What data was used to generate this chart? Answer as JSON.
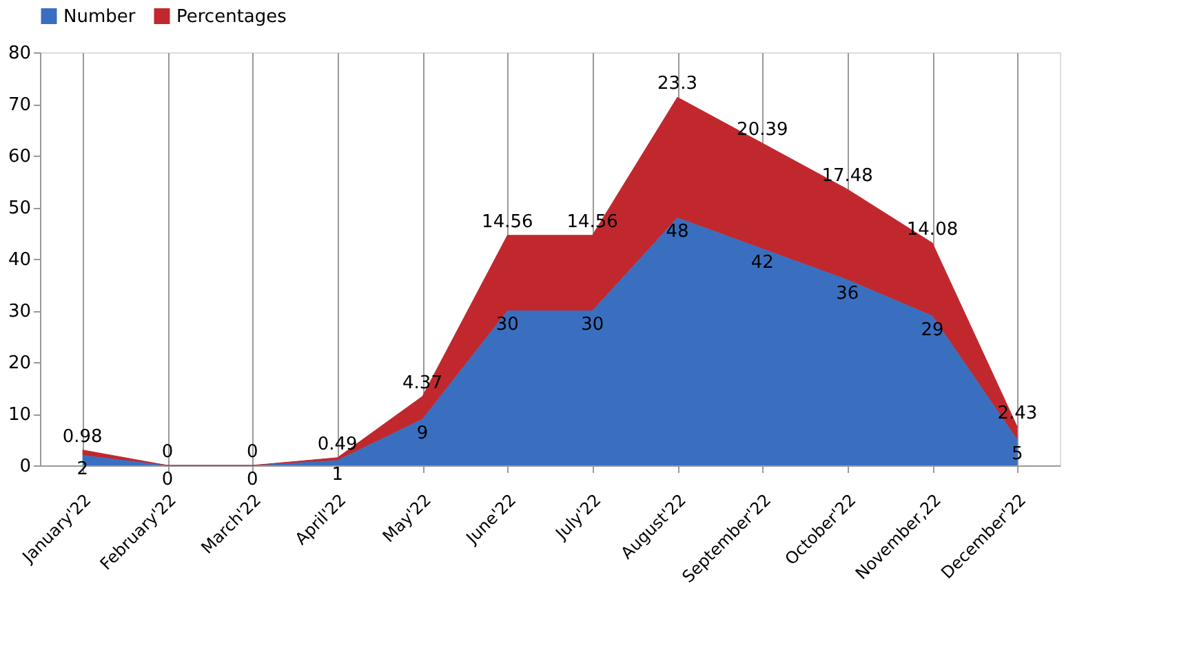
{
  "chart_data": {
    "type": "area",
    "stacked": true,
    "categories": [
      "January'22",
      "February'22",
      "March'22",
      "April'22",
      "May'22",
      "June'22",
      "July'22",
      "August'22",
      "September'22",
      "October'22",
      "November,22",
      "December'22"
    ],
    "series": [
      {
        "name": "Number",
        "color": "#3a6fc0",
        "values": [
          2,
          0,
          0,
          1,
          9,
          30,
          30,
          48,
          42,
          36,
          29,
          5
        ]
      },
      {
        "name": "Percentages",
        "color": "#c0282d",
        "values": [
          0.98,
          0,
          0,
          0.49,
          4.37,
          14.56,
          14.56,
          23.3,
          20.39,
          17.48,
          14.08,
          2.43
        ]
      }
    ],
    "ylim": [
      0,
      80
    ],
    "yticks": [
      0,
      10,
      20,
      30,
      40,
      50,
      60,
      70,
      80
    ],
    "grid": "x",
    "legend": "top",
    "data_labels": true
  }
}
